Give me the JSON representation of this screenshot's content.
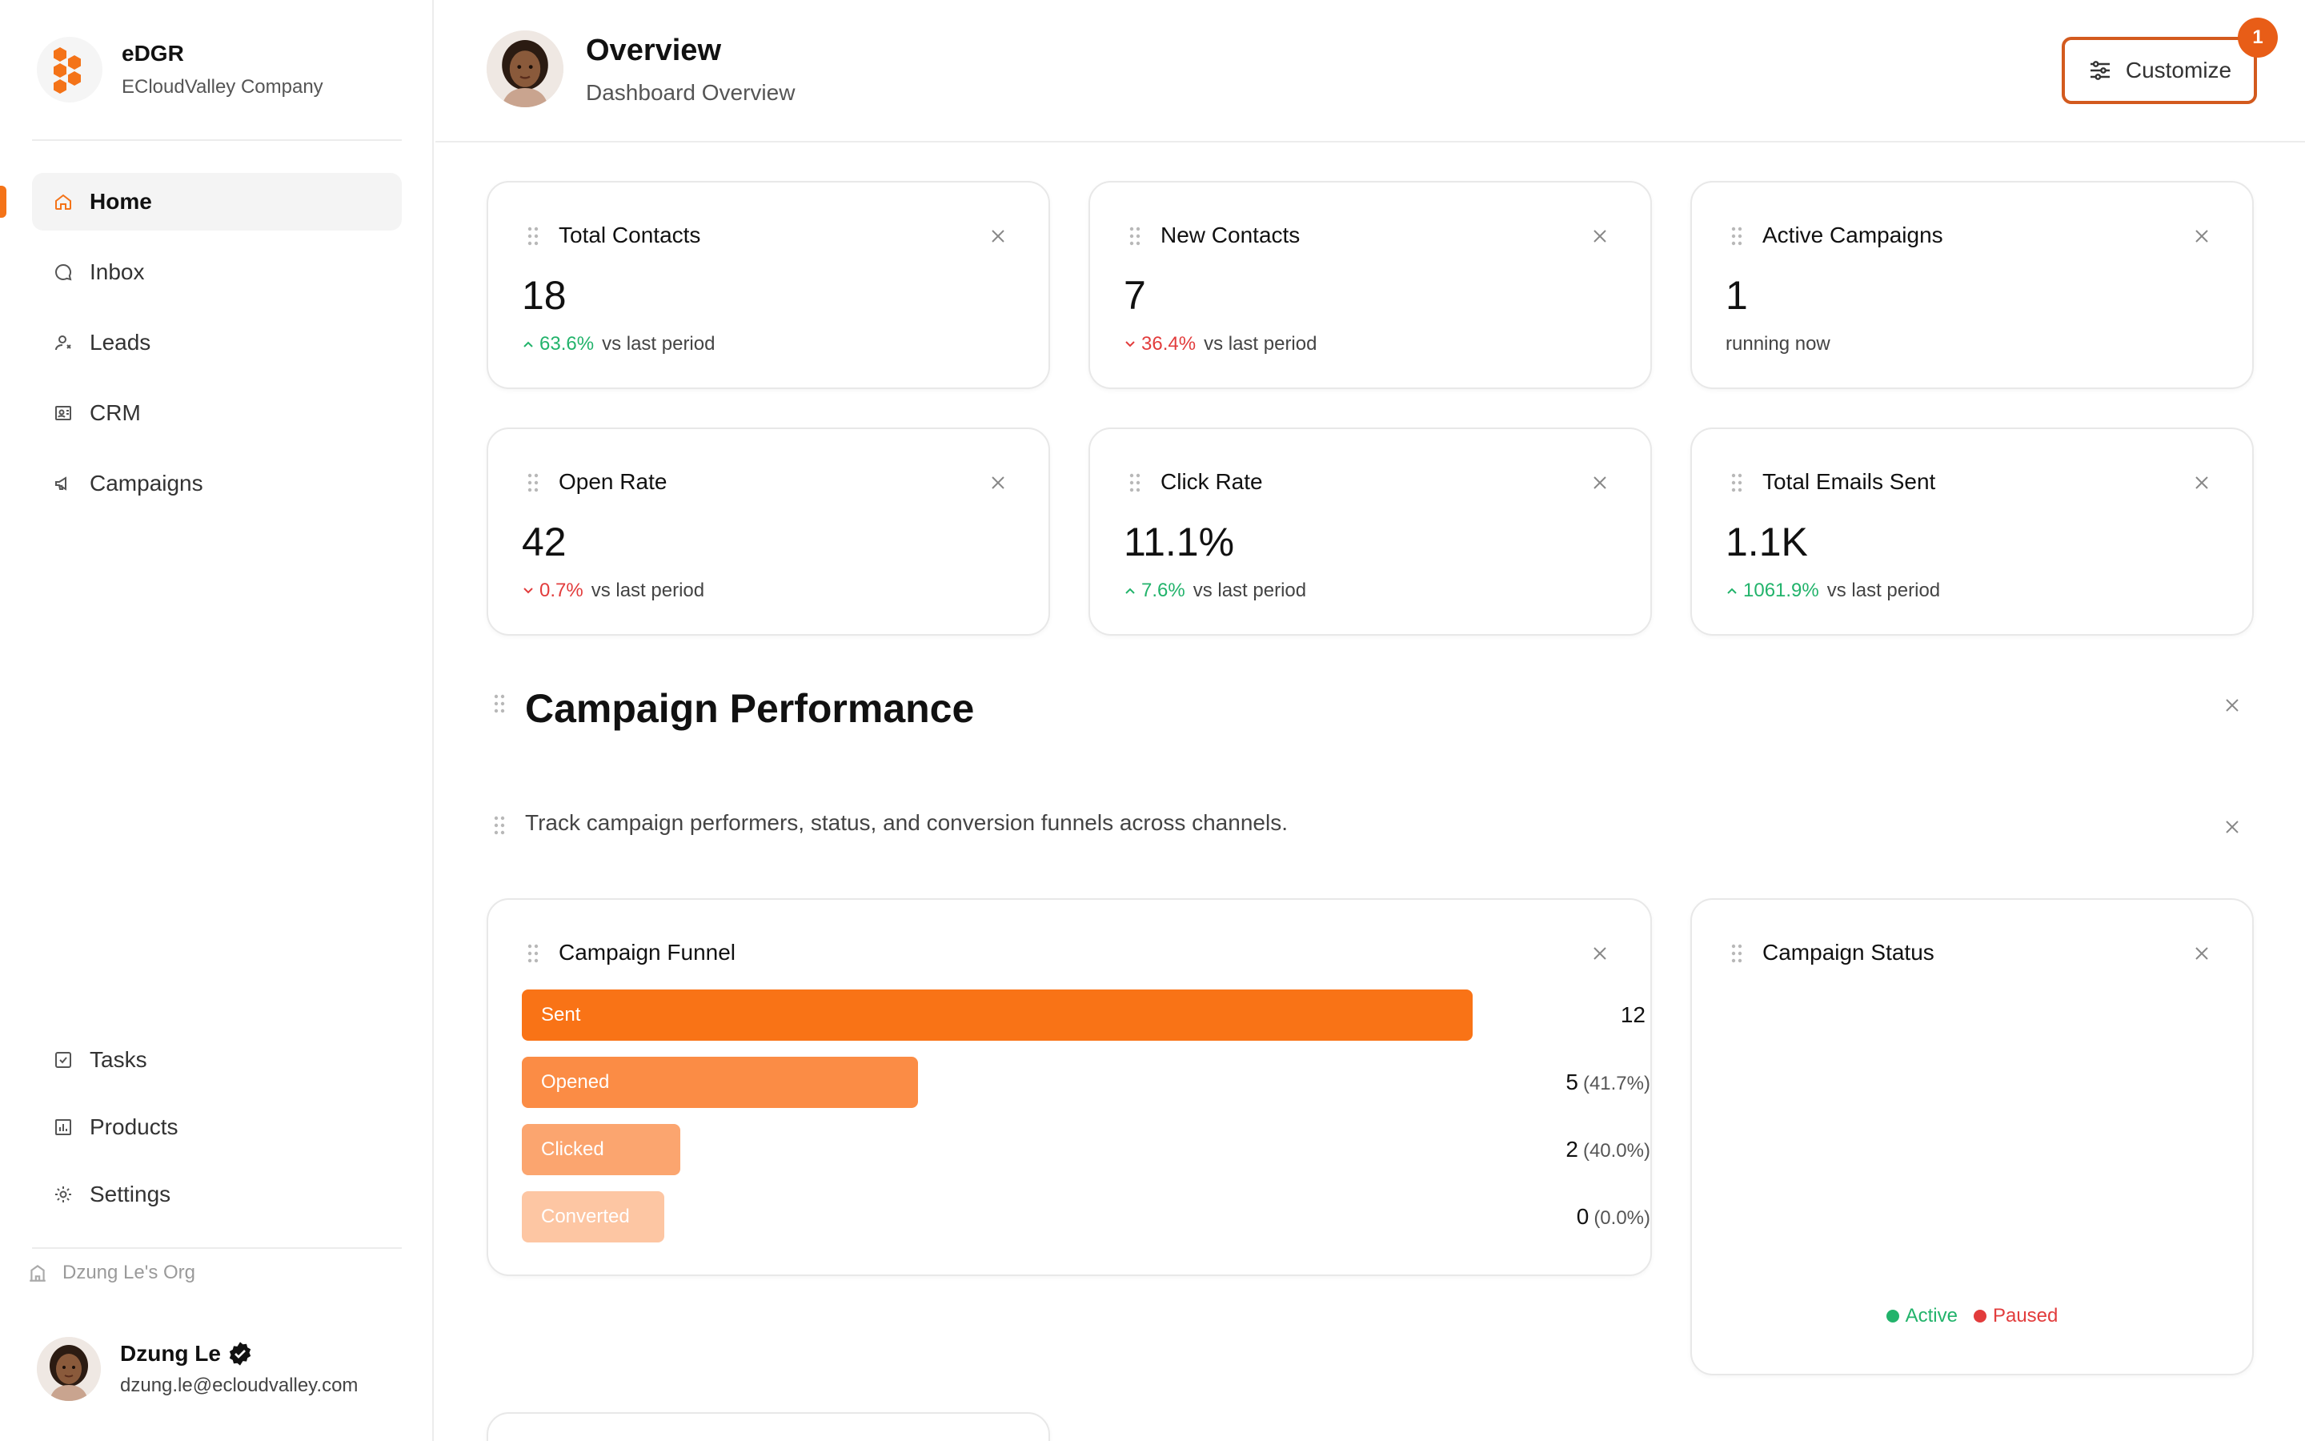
{
  "brand": {
    "name": "eDGR",
    "company": "ECloudValley Company"
  },
  "nav": {
    "main": [
      {
        "id": "home",
        "label": "Home",
        "icon": "home-icon",
        "active": true
      },
      {
        "id": "inbox",
        "label": "Inbox",
        "icon": "chat-icon"
      },
      {
        "id": "leads",
        "label": "Leads",
        "icon": "user-icon"
      },
      {
        "id": "crm",
        "label": "CRM",
        "icon": "contact-book-icon"
      },
      {
        "id": "campaigns",
        "label": "Campaigns",
        "icon": "megaphone-icon"
      }
    ],
    "bottom": [
      {
        "id": "tasks",
        "label": "Tasks",
        "icon": "checkbox-icon"
      },
      {
        "id": "products",
        "label": "Products",
        "icon": "chart-icon"
      },
      {
        "id": "settings",
        "label": "Settings",
        "icon": "gear-icon"
      }
    ]
  },
  "org": {
    "label": "Dzung Le's Org"
  },
  "user": {
    "name": "Dzung Le",
    "email": "dzung.le@ecloudvalley.com"
  },
  "header": {
    "title": "Overview",
    "subtitle": "Dashboard Overview",
    "customize_label": "Customize",
    "badge_count": "1"
  },
  "stats": [
    {
      "title": "Total Contacts",
      "value": "18",
      "change": "63.6%",
      "direction": "up",
      "suffix": "vs last period"
    },
    {
      "title": "New Contacts",
      "value": "7",
      "change": "36.4%",
      "direction": "down",
      "suffix": "vs last period"
    },
    {
      "title": "Active Campaigns",
      "value": "1",
      "change": "",
      "direction": "none",
      "suffix": "running now"
    },
    {
      "title": "Open Rate",
      "value": "42",
      "change": "0.7%",
      "direction": "down",
      "suffix": "vs last period"
    },
    {
      "title": "Click Rate",
      "value": "11.1%",
      "change": "7.6%",
      "direction": "up",
      "suffix": "vs last period"
    },
    {
      "title": "Total Emails Sent",
      "value": "1.1K",
      "change": "1061.9%",
      "direction": "up",
      "suffix": "vs last period"
    }
  ],
  "section": {
    "title": "Campaign Performance",
    "description": "Track campaign performers, status, and conversion funnels across channels."
  },
  "funnel": {
    "title": "Campaign Funnel",
    "stages": [
      {
        "label": "Sent",
        "count": "12",
        "pct": "",
        "color": "#f97316"
      },
      {
        "label": "Opened",
        "count": "5",
        "pct": "(41.7%)",
        "color": "#fb8c45"
      },
      {
        "label": "Clicked",
        "count": "2",
        "pct": "(40.0%)",
        "color": "#fba56f"
      },
      {
        "label": "Converted",
        "count": "0",
        "pct": "(0.0%)",
        "color": "#fdc6a3"
      }
    ]
  },
  "status": {
    "title": "Campaign Status",
    "legend": [
      {
        "label": "Active",
        "color": "#22b36b"
      },
      {
        "label": "Paused",
        "color": "#e23c3c"
      }
    ]
  },
  "chart_data": {
    "type": "bar",
    "orientation": "horizontal",
    "categories": [
      "Sent",
      "Opened",
      "Clicked",
      "Converted"
    ],
    "values": [
      12,
      5,
      2,
      0
    ],
    "xlim": [
      0,
      12
    ]
  },
  "colors": {
    "accent": "#f47318",
    "up": "#22b36b",
    "down": "#e23c3c"
  }
}
